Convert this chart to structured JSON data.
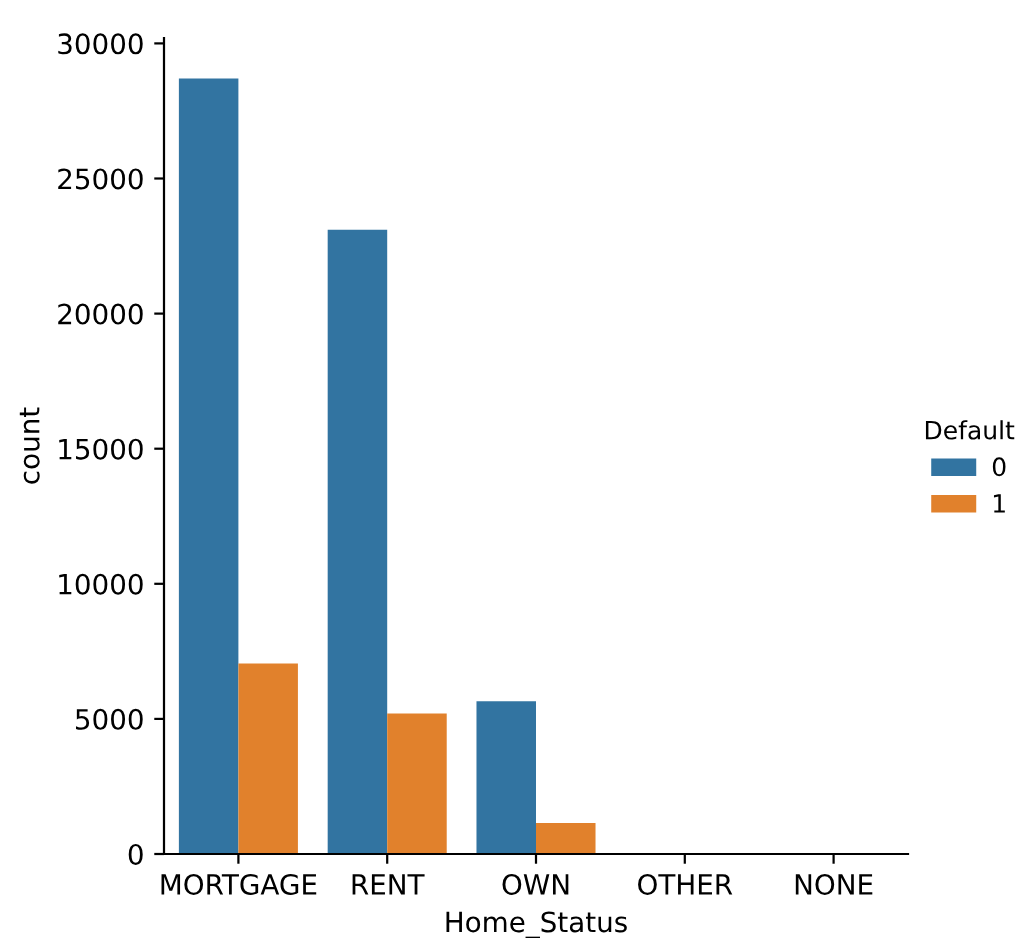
{
  "chart_data": {
    "type": "bar",
    "xlabel": "Home_Status",
    "ylabel": "count",
    "legend_title": "Default",
    "categories": [
      "MORTGAGE",
      "RENT",
      "OWN",
      "OTHER",
      "NONE"
    ],
    "series": [
      {
        "name": "0",
        "color": "#3274a1",
        "values": [
          28700,
          23100,
          5650,
          0,
          0
        ]
      },
      {
        "name": "1",
        "color": "#e1812c",
        "values": [
          7050,
          5200,
          1150,
          0,
          0
        ]
      }
    ],
    "ylim": [
      0,
      30200
    ],
    "yticks": [
      0,
      5000,
      10000,
      15000,
      20000,
      25000,
      30000
    ],
    "grid": false,
    "legend": "right"
  }
}
